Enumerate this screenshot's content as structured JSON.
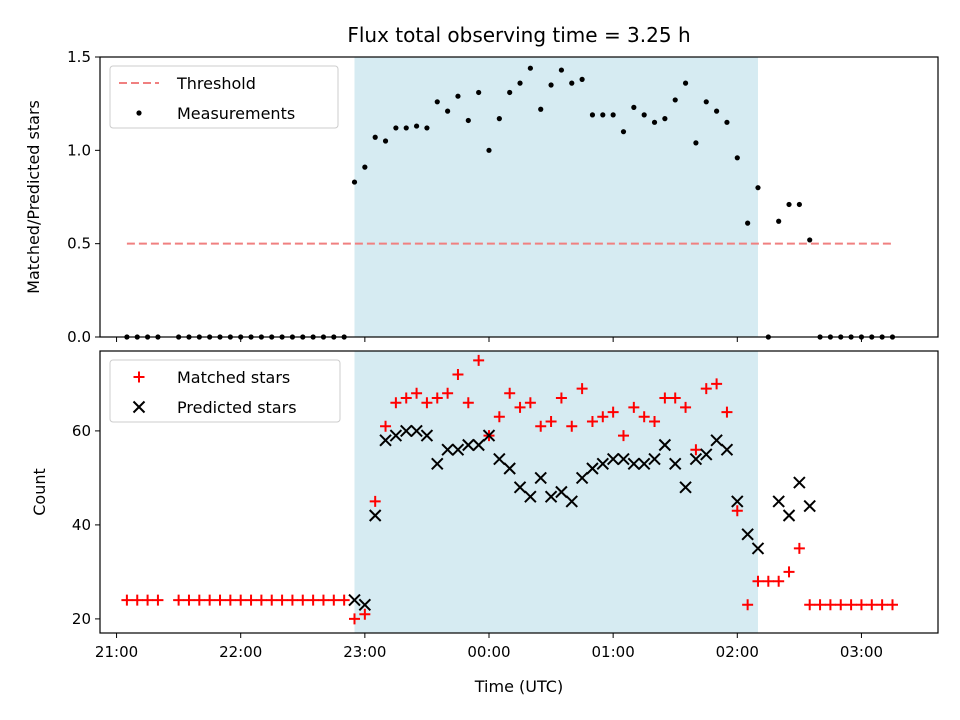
{
  "chart_data": [
    {
      "type": "scatter",
      "title": "Flux total observing time = 3.25 h",
      "xlabel": "",
      "ylabel": "Matched/Predicted stars",
      "ylim": [
        0,
        1.5
      ],
      "yticks": [
        "0.0",
        "0.5",
        "1.0",
        "1.5"
      ],
      "xlim": [
        "20:52",
        "03:37"
      ],
      "xticks": [
        "21:00",
        "22:00",
        "23:00",
        "00:00",
        "01:00",
        "02:00",
        "03:00"
      ],
      "shaded_region": {
        "start": "22:55",
        "end": "02:10"
      },
      "legend": {
        "position": "top-left",
        "entries": [
          "Threshold",
          "Measurements"
        ]
      },
      "series": [
        {
          "name": "Threshold",
          "kind": "dashed-line",
          "color": "#f08080",
          "x": [
            "21:05",
            "03:15"
          ],
          "y": [
            0.5,
            0.5
          ]
        },
        {
          "name": "Measurements",
          "kind": "dot",
          "color": "#000000",
          "x": [
            "21:05",
            "21:10",
            "21:15",
            "21:20",
            "21:30",
            "21:35",
            "21:40",
            "21:45",
            "21:50",
            "21:55",
            "22:00",
            "22:05",
            "22:10",
            "22:15",
            "22:20",
            "22:25",
            "22:30",
            "22:35",
            "22:40",
            "22:45",
            "22:50",
            "22:55",
            "23:00",
            "23:05",
            "23:10",
            "23:15",
            "23:20",
            "23:25",
            "23:30",
            "23:35",
            "23:40",
            "23:45",
            "23:50",
            "23:55",
            "00:00",
            "00:05",
            "00:10",
            "00:15",
            "00:20",
            "00:25",
            "00:30",
            "00:35",
            "00:40",
            "00:45",
            "00:50",
            "00:55",
            "01:00",
            "01:05",
            "01:10",
            "01:15",
            "01:20",
            "01:25",
            "01:30",
            "01:35",
            "01:40",
            "01:45",
            "01:50",
            "01:55",
            "02:00",
            "02:05",
            "02:10",
            "02:15",
            "02:20",
            "02:25",
            "02:30",
            "02:35",
            "02:40",
            "02:45",
            "02:50",
            "02:55",
            "03:00",
            "03:05",
            "03:10",
            "03:15"
          ],
          "y": [
            0,
            0,
            0,
            0,
            0,
            0,
            0,
            0,
            0,
            0,
            0,
            0,
            0,
            0,
            0,
            0,
            0,
            0,
            0,
            0,
            0,
            0.83,
            0.91,
            1.07,
            1.05,
            1.12,
            1.12,
            1.13,
            1.12,
            1.26,
            1.21,
            1.29,
            1.16,
            1.31,
            1.0,
            1.17,
            1.31,
            1.36,
            1.44,
            1.22,
            1.35,
            1.43,
            1.36,
            1.38,
            1.19,
            1.19,
            1.19,
            1.1,
            1.23,
            1.19,
            1.15,
            1.17,
            1.27,
            1.36,
            1.04,
            1.26,
            1.21,
            1.15,
            0.96,
            0.61,
            0.8,
            0,
            0.62,
            0.71,
            0.71,
            0.52,
            0,
            0,
            0,
            0,
            0,
            0,
            0,
            0
          ]
        }
      ]
    },
    {
      "type": "scatter",
      "title": "",
      "xlabel": "Time (UTC)",
      "ylabel": "Count",
      "ylim": [
        17,
        77
      ],
      "yticks": [
        "20",
        "40",
        "60"
      ],
      "xlim": [
        "20:52",
        "03:37"
      ],
      "xticks": [
        "21:00",
        "22:00",
        "23:00",
        "00:00",
        "01:00",
        "02:00",
        "03:00"
      ],
      "shaded_region": {
        "start": "22:55",
        "end": "02:10"
      },
      "legend": {
        "position": "top-left",
        "entries": [
          "Matched stars",
          "Predicted stars"
        ]
      },
      "series": [
        {
          "name": "Matched stars",
          "kind": "plus",
          "color": "#ff0000",
          "x": [
            "21:05",
            "21:10",
            "21:15",
            "21:20",
            "21:30",
            "21:35",
            "21:40",
            "21:45",
            "21:50",
            "21:55",
            "22:00",
            "22:05",
            "22:10",
            "22:15",
            "22:20",
            "22:25",
            "22:30",
            "22:35",
            "22:40",
            "22:45",
            "22:50",
            "22:55",
            "23:00",
            "23:05",
            "23:10",
            "23:15",
            "23:20",
            "23:25",
            "23:30",
            "23:35",
            "23:40",
            "23:45",
            "23:50",
            "23:55",
            "00:00",
            "00:05",
            "00:10",
            "00:15",
            "00:20",
            "00:25",
            "00:30",
            "00:35",
            "00:40",
            "00:45",
            "00:50",
            "00:55",
            "01:00",
            "01:05",
            "01:10",
            "01:15",
            "01:20",
            "01:25",
            "01:30",
            "01:35",
            "01:40",
            "01:45",
            "01:50",
            "01:55",
            "02:00",
            "02:05",
            "02:10",
            "02:15",
            "02:20",
            "02:25",
            "02:30",
            "02:35",
            "02:40",
            "02:45",
            "02:50",
            "02:55",
            "03:00",
            "03:05",
            "03:10",
            "03:15"
          ],
          "y": [
            24,
            24,
            24,
            24,
            24,
            24,
            24,
            24,
            24,
            24,
            24,
            24,
            24,
            24,
            24,
            24,
            24,
            24,
            24,
            24,
            24,
            20,
            21,
            45,
            61,
            66,
            67,
            68,
            66,
            67,
            68,
            72,
            66,
            75,
            59,
            63,
            68,
            65,
            66,
            61,
            62,
            67,
            61,
            69,
            62,
            63,
            64,
            59,
            65,
            63,
            62,
            67,
            67,
            65,
            56,
            69,
            70,
            64,
            43,
            23,
            28,
            28,
            28,
            30,
            35,
            23,
            23,
            23,
            23,
            23,
            23,
            23,
            23,
            23
          ]
        },
        {
          "name": "Predicted stars",
          "kind": "x",
          "color": "#000000",
          "x": [
            "22:55",
            "23:00",
            "23:05",
            "23:10",
            "23:15",
            "23:20",
            "23:25",
            "23:30",
            "23:35",
            "23:40",
            "23:45",
            "23:50",
            "23:55",
            "00:00",
            "00:05",
            "00:10",
            "00:15",
            "00:20",
            "00:25",
            "00:30",
            "00:35",
            "00:40",
            "00:45",
            "00:50",
            "00:55",
            "01:00",
            "01:05",
            "01:10",
            "01:15",
            "01:20",
            "01:25",
            "01:30",
            "01:35",
            "01:40",
            "01:45",
            "01:50",
            "01:55",
            "02:00",
            "02:05",
            "02:10",
            "02:15",
            "02:20",
            "02:25",
            "02:30",
            "02:35"
          ],
          "y": [
            24,
            23,
            42,
            58,
            59,
            60,
            60,
            59,
            53,
            56,
            56,
            57,
            57,
            59,
            54,
            52,
            48,
            46,
            50,
            46,
            47,
            45,
            50,
            52,
            53,
            54,
            54,
            53,
            53,
            54,
            57,
            53,
            48,
            54,
            55,
            58,
            56,
            45,
            38,
            35,
            null,
            45,
            42,
            49,
            44
          ]
        }
      ]
    }
  ]
}
